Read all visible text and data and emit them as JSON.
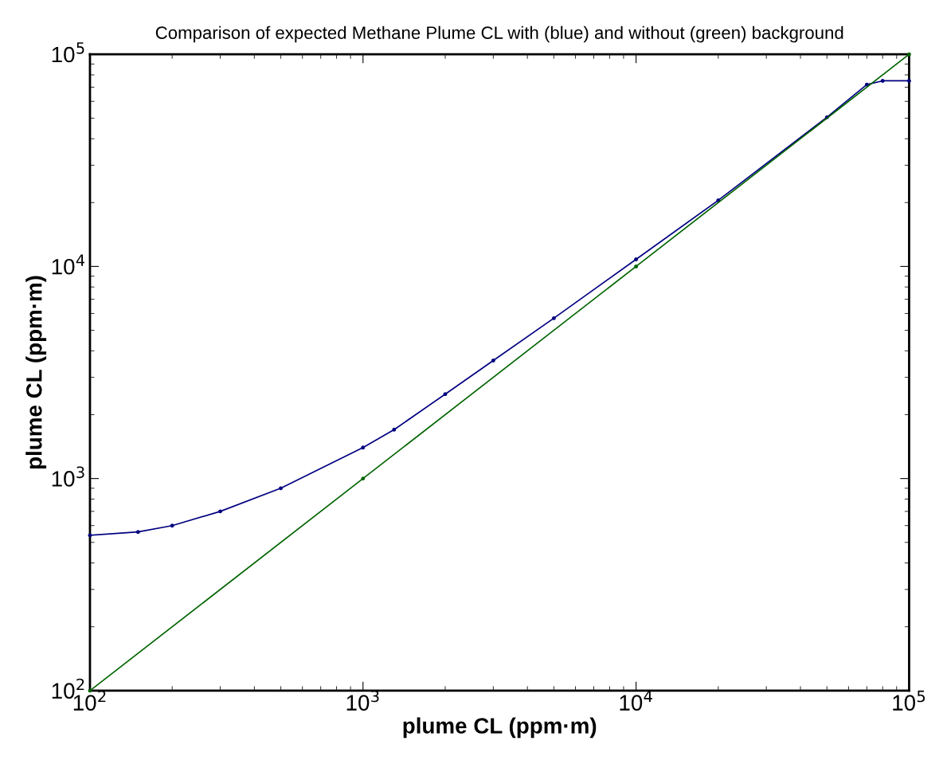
{
  "chart_data": {
    "type": "line",
    "title": "Comparison of expected Methane Plume CL with (blue) and without (green) background",
    "xlabel": "plume CL (ppm·m)",
    "ylabel": "plume CL (ppm·m)",
    "log": "xy",
    "grid": false,
    "marker": "circle",
    "line_style": "solid",
    "xlim": [
      100,
      100000
    ],
    "ylim": [
      100,
      100000
    ],
    "xticks": [
      {
        "value": 100,
        "label": "10$^{2}$"
      },
      {
        "value": 1000,
        "label": "10$^{3}$"
      },
      {
        "value": 10000,
        "label": "10$^{4}$"
      },
      {
        "value": 100000,
        "label": "10$^{5}$"
      }
    ],
    "yticks": [
      {
        "value": 100,
        "label": "10$^{2}$"
      },
      {
        "value": 1000,
        "label": "10$^{3}$"
      },
      {
        "value": 10000,
        "label": "10$^{4}$"
      },
      {
        "value": 100000,
        "label": "10$^{5}$"
      }
    ],
    "series": [
      {
        "color": "#000080",
        "x": [
          100,
          150,
          200,
          300,
          500,
          1000,
          1300,
          2000,
          3000,
          5000,
          10000,
          20000,
          50000,
          70000,
          80000,
          100000
        ],
        "values": [
          540,
          560,
          600,
          700,
          900,
          1400,
          1700,
          2500,
          3600,
          5700,
          10800,
          20500,
          50500,
          72000,
          75000,
          75000
        ]
      },
      {
        "color": "#006400",
        "x": [
          100,
          1000,
          10000,
          100000
        ],
        "values": [
          100,
          1000,
          10000,
          100000
        ]
      }
    ]
  }
}
